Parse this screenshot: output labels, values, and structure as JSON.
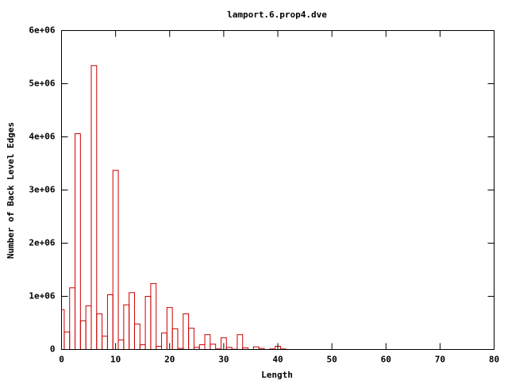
{
  "chart_data": {
    "type": "bar",
    "title": "lamport.6.prop4.dve",
    "x_label": "Length",
    "y_label": "Number of Back Level Edges",
    "x": [
      0,
      1,
      2,
      3,
      4,
      5,
      6,
      7,
      8,
      9,
      10,
      11,
      12,
      13,
      14,
      15,
      16,
      17,
      18,
      19,
      20,
      21,
      22,
      23,
      24,
      25,
      26,
      27,
      28,
      29,
      30,
      31,
      32,
      33,
      34,
      35,
      36,
      37,
      38,
      39,
      40,
      41
    ],
    "values": [
      750000,
      330000,
      1160000,
      4060000,
      540000,
      820000,
      5340000,
      670000,
      250000,
      1030000,
      3370000,
      180000,
      840000,
      1070000,
      480000,
      90000,
      1000000,
      1240000,
      60000,
      310000,
      790000,
      390000,
      20000,
      670000,
      400000,
      40000,
      90000,
      280000,
      100000,
      10000,
      220000,
      40000,
      5000,
      280000,
      30000,
      0,
      50000,
      20000,
      0,
      10000,
      60000,
      10000
    ],
    "color": "#cc0000",
    "xlim": [
      0,
      80
    ],
    "xticks": [
      0,
      10,
      20,
      30,
      40,
      50,
      60,
      70,
      80
    ],
    "ylim": [
      0,
      6000000
    ],
    "yticks": [
      0,
      {
        "value": 1000000,
        "label": "1e+06"
      },
      {
        "value": 2000000,
        "label": "2e+06"
      },
      {
        "value": 3000000,
        "label": "3e+06"
      },
      {
        "value": 4000000,
        "label": "4e+06"
      },
      {
        "value": 5000000,
        "label": "5e+06"
      },
      {
        "value": 6000000,
        "label": "6e+06"
      }
    ]
  }
}
